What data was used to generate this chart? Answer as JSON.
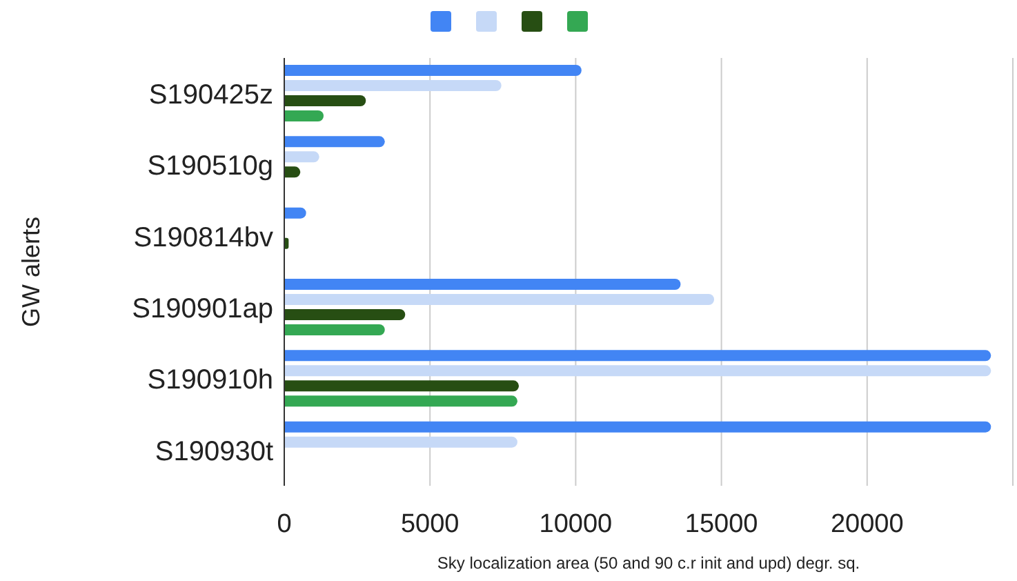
{
  "chart_data": {
    "type": "bar",
    "orientation": "horizontal",
    "xlabel": "Sky localization area (50 and 90 c.r init and upd) degr. sq.",
    "ylabel": "GW alerts",
    "categories": [
      "S190425z",
      "S190510g",
      "S190814bv",
      "S190901ap",
      "S190910h",
      "S190930t"
    ],
    "series": [
      {
        "color": "#4285f4",
        "values": [
          10200,
          3450,
          750,
          13600,
          24250,
          24250
        ]
      },
      {
        "color": "#c6d9f7",
        "values": [
          7450,
          1200,
          null,
          14750,
          24250,
          8000
        ]
      },
      {
        "color": "#274e13",
        "values": [
          2800,
          550,
          150,
          4150,
          8050,
          null
        ]
      },
      {
        "color": "#34a853",
        "values": [
          1350,
          null,
          null,
          3450,
          8000,
          null
        ]
      }
    ],
    "xlim": [
      0,
      25000
    ],
    "xticks": [
      0,
      5000,
      10000,
      15000,
      20000,
      {
        "value": 25000,
        "label": null
      }
    ],
    "grid": "x"
  }
}
